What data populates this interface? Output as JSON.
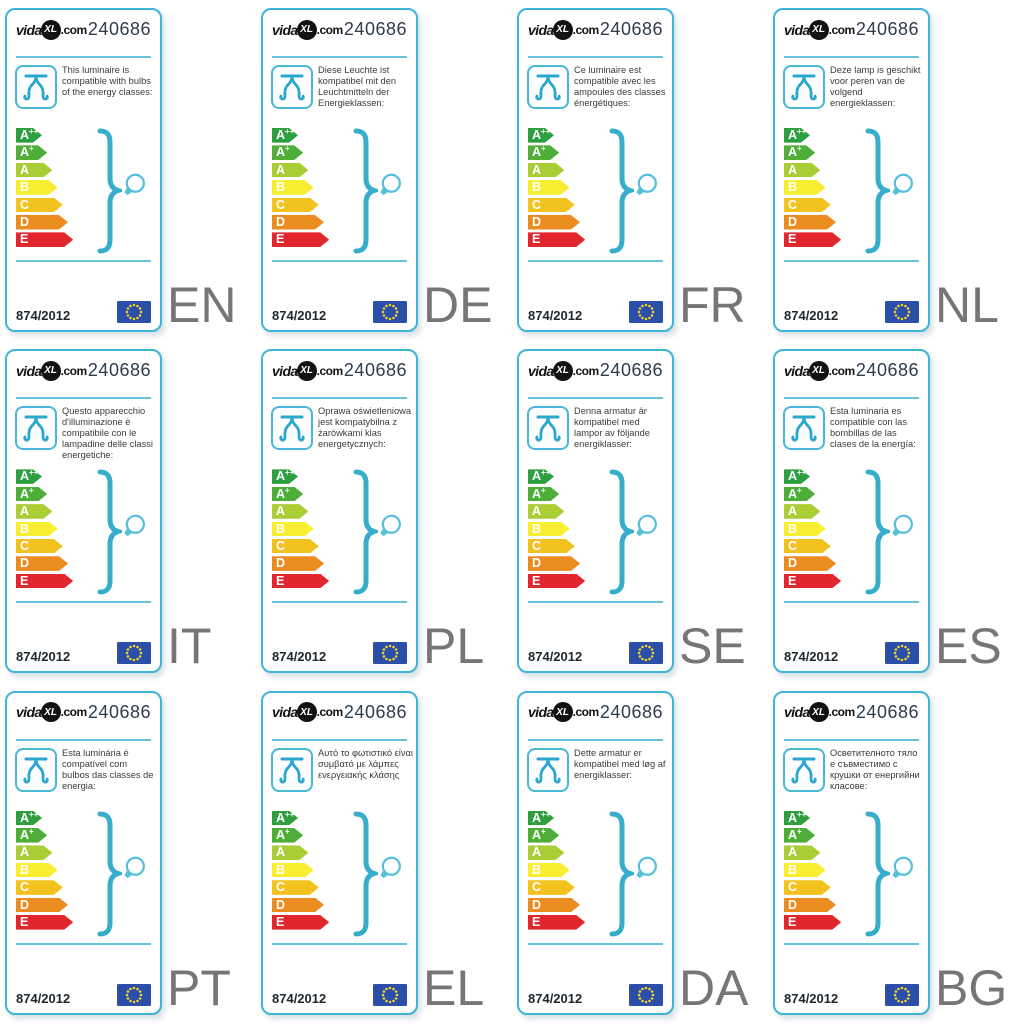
{
  "shared": {
    "brand": {
      "vida": "vida",
      "xl": "XL",
      "com": ".com"
    },
    "product_number": "240686",
    "regulation": "874/2012",
    "icons": {
      "luminaire_icon": "pendant-luminaire",
      "bulb_icon": "light-bulb",
      "brace_icon": "curly-brace",
      "eu_flag_icon": "eu-flag"
    },
    "colors": {
      "card_border": "#3db4d8",
      "rule": "#67c3dc",
      "icon_stroke": "#2ba7cf",
      "brace": "#35aecb",
      "bulb": "#55bfd9",
      "language_code": "#767676",
      "eu_flag_blue": "#2b4ea8",
      "eu_flag_stars": "#ffd81c"
    },
    "energy_classes": [
      {
        "code": "a-plus-plus",
        "label": "A",
        "sup": "++",
        "color": "#2e9f3f"
      },
      {
        "code": "a-plus",
        "label": "A",
        "sup": "+",
        "color": "#4fae38"
      },
      {
        "code": "a",
        "label": "A",
        "sup": "",
        "color": "#a9ce35"
      },
      {
        "code": "b",
        "label": "B",
        "sup": "",
        "color": "#f6ee2f"
      },
      {
        "code": "c",
        "label": "C",
        "sup": "",
        "color": "#f2c21e"
      },
      {
        "code": "d",
        "label": "D",
        "sup": "",
        "color": "#eb8c21"
      },
      {
        "code": "e",
        "label": "E",
        "sup": "",
        "color": "#e2262d"
      }
    ]
  },
  "labels": [
    {
      "lang": "EN",
      "description": "This luminaire is compatible with bulbs of the energy classes:"
    },
    {
      "lang": "DE",
      "description": "Diese Leuchte ist kompatibel mit den Leuchtmitteln der Energieklassen:"
    },
    {
      "lang": "FR",
      "description": "Ce luminaire est compatible avec les ampoules des classes énergétiques:"
    },
    {
      "lang": "NL",
      "description": "Deze lamp is geschikt voor peren van de volgend energieklassen:"
    },
    {
      "lang": "IT",
      "description": "Questo apparecchio d'illuminazione è compatibile con le lampadine delle classi energetiche:"
    },
    {
      "lang": "PL",
      "description": "Oprawa oświetleniowa jest kompatybilna z żarówkami klas energetycznych:"
    },
    {
      "lang": "SE",
      "description": "Denna armatur är kompatibel med lampor av följande energiklasser:"
    },
    {
      "lang": "ES",
      "description": "Esta luminaria es compatible con las bombillas de las clases de la energía:"
    },
    {
      "lang": "PT",
      "description": "Esta luminária é compatível com bulbos das classes de energia:"
    },
    {
      "lang": "EL",
      "description": "Αυτό το φωτιστικό είναι συμβατό με λάμπες ενεργειακής κλάσης"
    },
    {
      "lang": "DA",
      "description": "Dette armatur er kompatibel med løg af energiklasser:"
    },
    {
      "lang": "BG",
      "description": "Осветителното тяло е съвместимо с крушки от енергийни класове:"
    }
  ]
}
